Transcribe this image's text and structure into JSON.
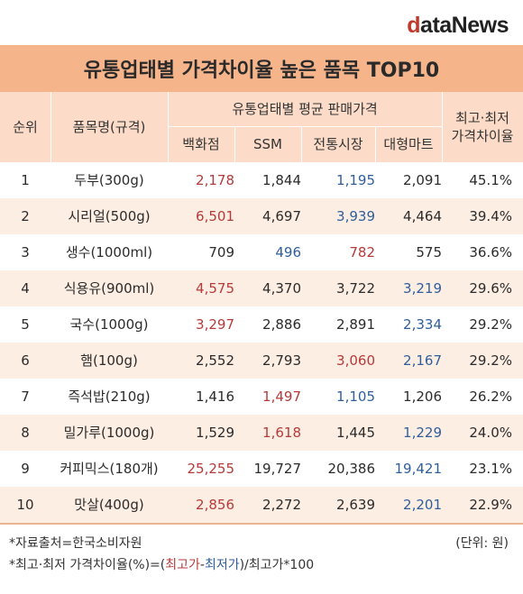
{
  "brand": {
    "prefix": "d",
    "rest": "ataNews"
  },
  "title": "유통업태별 가격차이율 높은 품목 TOP10",
  "header": {
    "rank": "순위",
    "item": "품목명(규격)",
    "group": "유통업태별 평균 판매가격",
    "dept": "백화점",
    "ssm": "SSM",
    "market": "전통시장",
    "mart": "대형마트",
    "gap_line1": "최고·최저",
    "gap_line2": "가격차이율"
  },
  "rows": [
    {
      "rank": "1",
      "item": "두부(300g)",
      "dept": "2,178",
      "ssm": "1,844",
      "market": "1,195",
      "mart": "2,091",
      "gap": "45.1%",
      "high": "dept",
      "low": "market"
    },
    {
      "rank": "2",
      "item": "시리얼(500g)",
      "dept": "6,501",
      "ssm": "4,697",
      "market": "3,939",
      "mart": "4,464",
      "gap": "39.4%",
      "high": "dept",
      "low": "market"
    },
    {
      "rank": "3",
      "item": "생수(1000ml)",
      "dept": "709",
      "ssm": "496",
      "market": "782",
      "mart": "575",
      "gap": "36.6%",
      "high": "market",
      "low": "ssm"
    },
    {
      "rank": "4",
      "item": "식용유(900ml)",
      "dept": "4,575",
      "ssm": "4,370",
      "market": "3,722",
      "mart": "3,219",
      "gap": "29.6%",
      "high": "dept",
      "low": "mart"
    },
    {
      "rank": "5",
      "item": "국수(1000g)",
      "dept": "3,297",
      "ssm": "2,886",
      "market": "2,891",
      "mart": "2,334",
      "gap": "29.2%",
      "high": "dept",
      "low": "mart"
    },
    {
      "rank": "6",
      "item": "햄(100g)",
      "dept": "2,552",
      "ssm": "2,793",
      "market": "3,060",
      "mart": "2,167",
      "gap": "29.2%",
      "high": "market",
      "low": "mart"
    },
    {
      "rank": "7",
      "item": "즉석밥(210g)",
      "dept": "1,416",
      "ssm": "1,497",
      "market": "1,105",
      "mart": "1,206",
      "gap": "26.2%",
      "high": "ssm",
      "low": "market"
    },
    {
      "rank": "8",
      "item": "밀가루(1000g)",
      "dept": "1,529",
      "ssm": "1,618",
      "market": "1,445",
      "mart": "1,229",
      "gap": "24.0%",
      "high": "ssm",
      "low": "mart"
    },
    {
      "rank": "9",
      "item": "커피믹스(180개)",
      "dept": "25,255",
      "ssm": "19,727",
      "market": "20,386",
      "mart": "19,421",
      "gap": "23.1%",
      "high": "dept",
      "low": "mart"
    },
    {
      "rank": "10",
      "item": "맛살(400g)",
      "dept": "2,856",
      "ssm": "2,272",
      "market": "2,639",
      "mart": "2,201",
      "gap": "22.9%",
      "high": "dept",
      "low": "mart"
    }
  ],
  "notes": {
    "source": "*자료출처=한국소비자원",
    "unit": "(단위: 원)",
    "formula_prefix": "*최고·최저 가격차이율(%)=(",
    "formula_high": "최고가",
    "formula_dash": "-",
    "formula_low": "최저가",
    "formula_suffix": ")/최고가*100"
  },
  "colors": {
    "title_bg": "#f6b48a",
    "header_bg": "#fcdcc8",
    "alt_row_bg": "#fdeee3",
    "highest": "#b63a3a",
    "lowest": "#2f5e9a"
  }
}
